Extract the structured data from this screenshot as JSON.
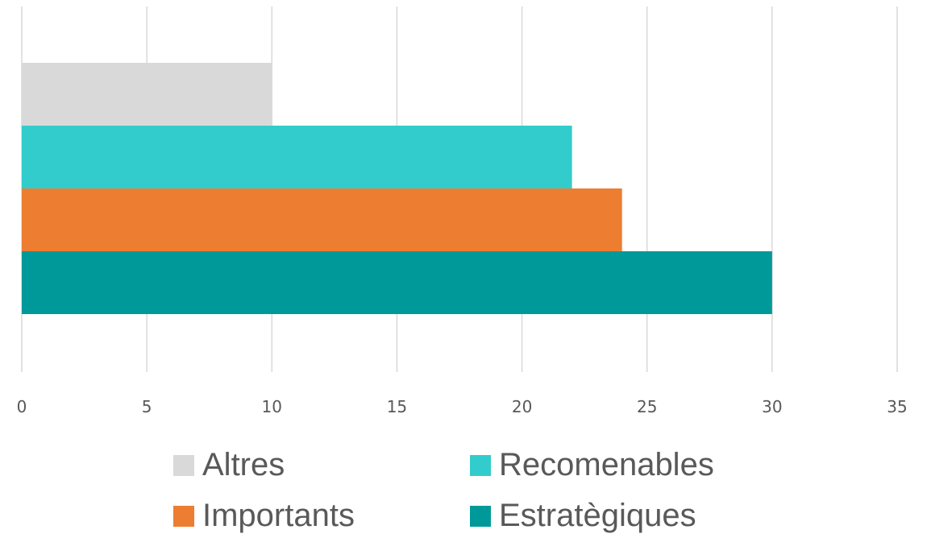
{
  "chart_data": {
    "type": "bar",
    "orientation": "horizontal",
    "title": "",
    "xlabel": "",
    "ylabel": "",
    "xlim": [
      0,
      35
    ],
    "x_ticks": [
      "0",
      "5",
      "10",
      "15",
      "20",
      "25",
      "30",
      "35"
    ],
    "grid": "vertical",
    "legend_position": "bottom",
    "series": [
      {
        "name": "Altres",
        "value": 10,
        "color": "#D9D9D9"
      },
      {
        "name": "Recomenables",
        "value": 22,
        "color": "#33CCCC"
      },
      {
        "name": "Importants",
        "value": 24,
        "color": "#ED7D31"
      },
      {
        "name": "Estratègiques",
        "value": 30,
        "color": "#009999"
      }
    ]
  }
}
